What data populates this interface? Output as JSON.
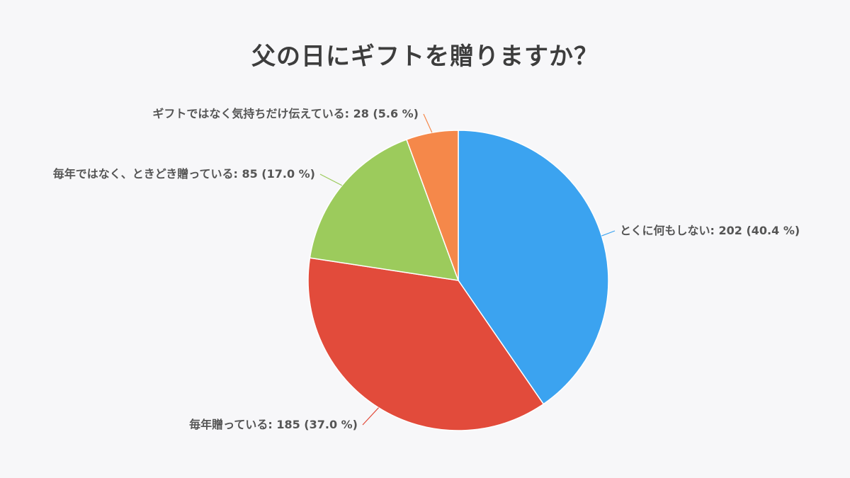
{
  "chart_data": {
    "type": "pie",
    "title": "父の日にギフトを贈りますか？",
    "slices": [
      {
        "label": "とくに何もしない",
        "value": 202,
        "percent": "40.4 %",
        "color": "#3ba3f0"
      },
      {
        "label": "毎年贈っている",
        "value": 185,
        "percent": "37.0 %",
        "color": "#e24b3b"
      },
      {
        "label": "毎年ではなく、ときどき贈っている",
        "value": 85,
        "percent": "17.0 %",
        "color": "#9ccb5c"
      },
      {
        "label": "ギフトではなく気持ちだけ伝えている",
        "value": 28,
        "percent": "5.6 %",
        "color": "#f5884a"
      }
    ],
    "legend": "none",
    "labels": "outside-with-leader-lines"
  }
}
